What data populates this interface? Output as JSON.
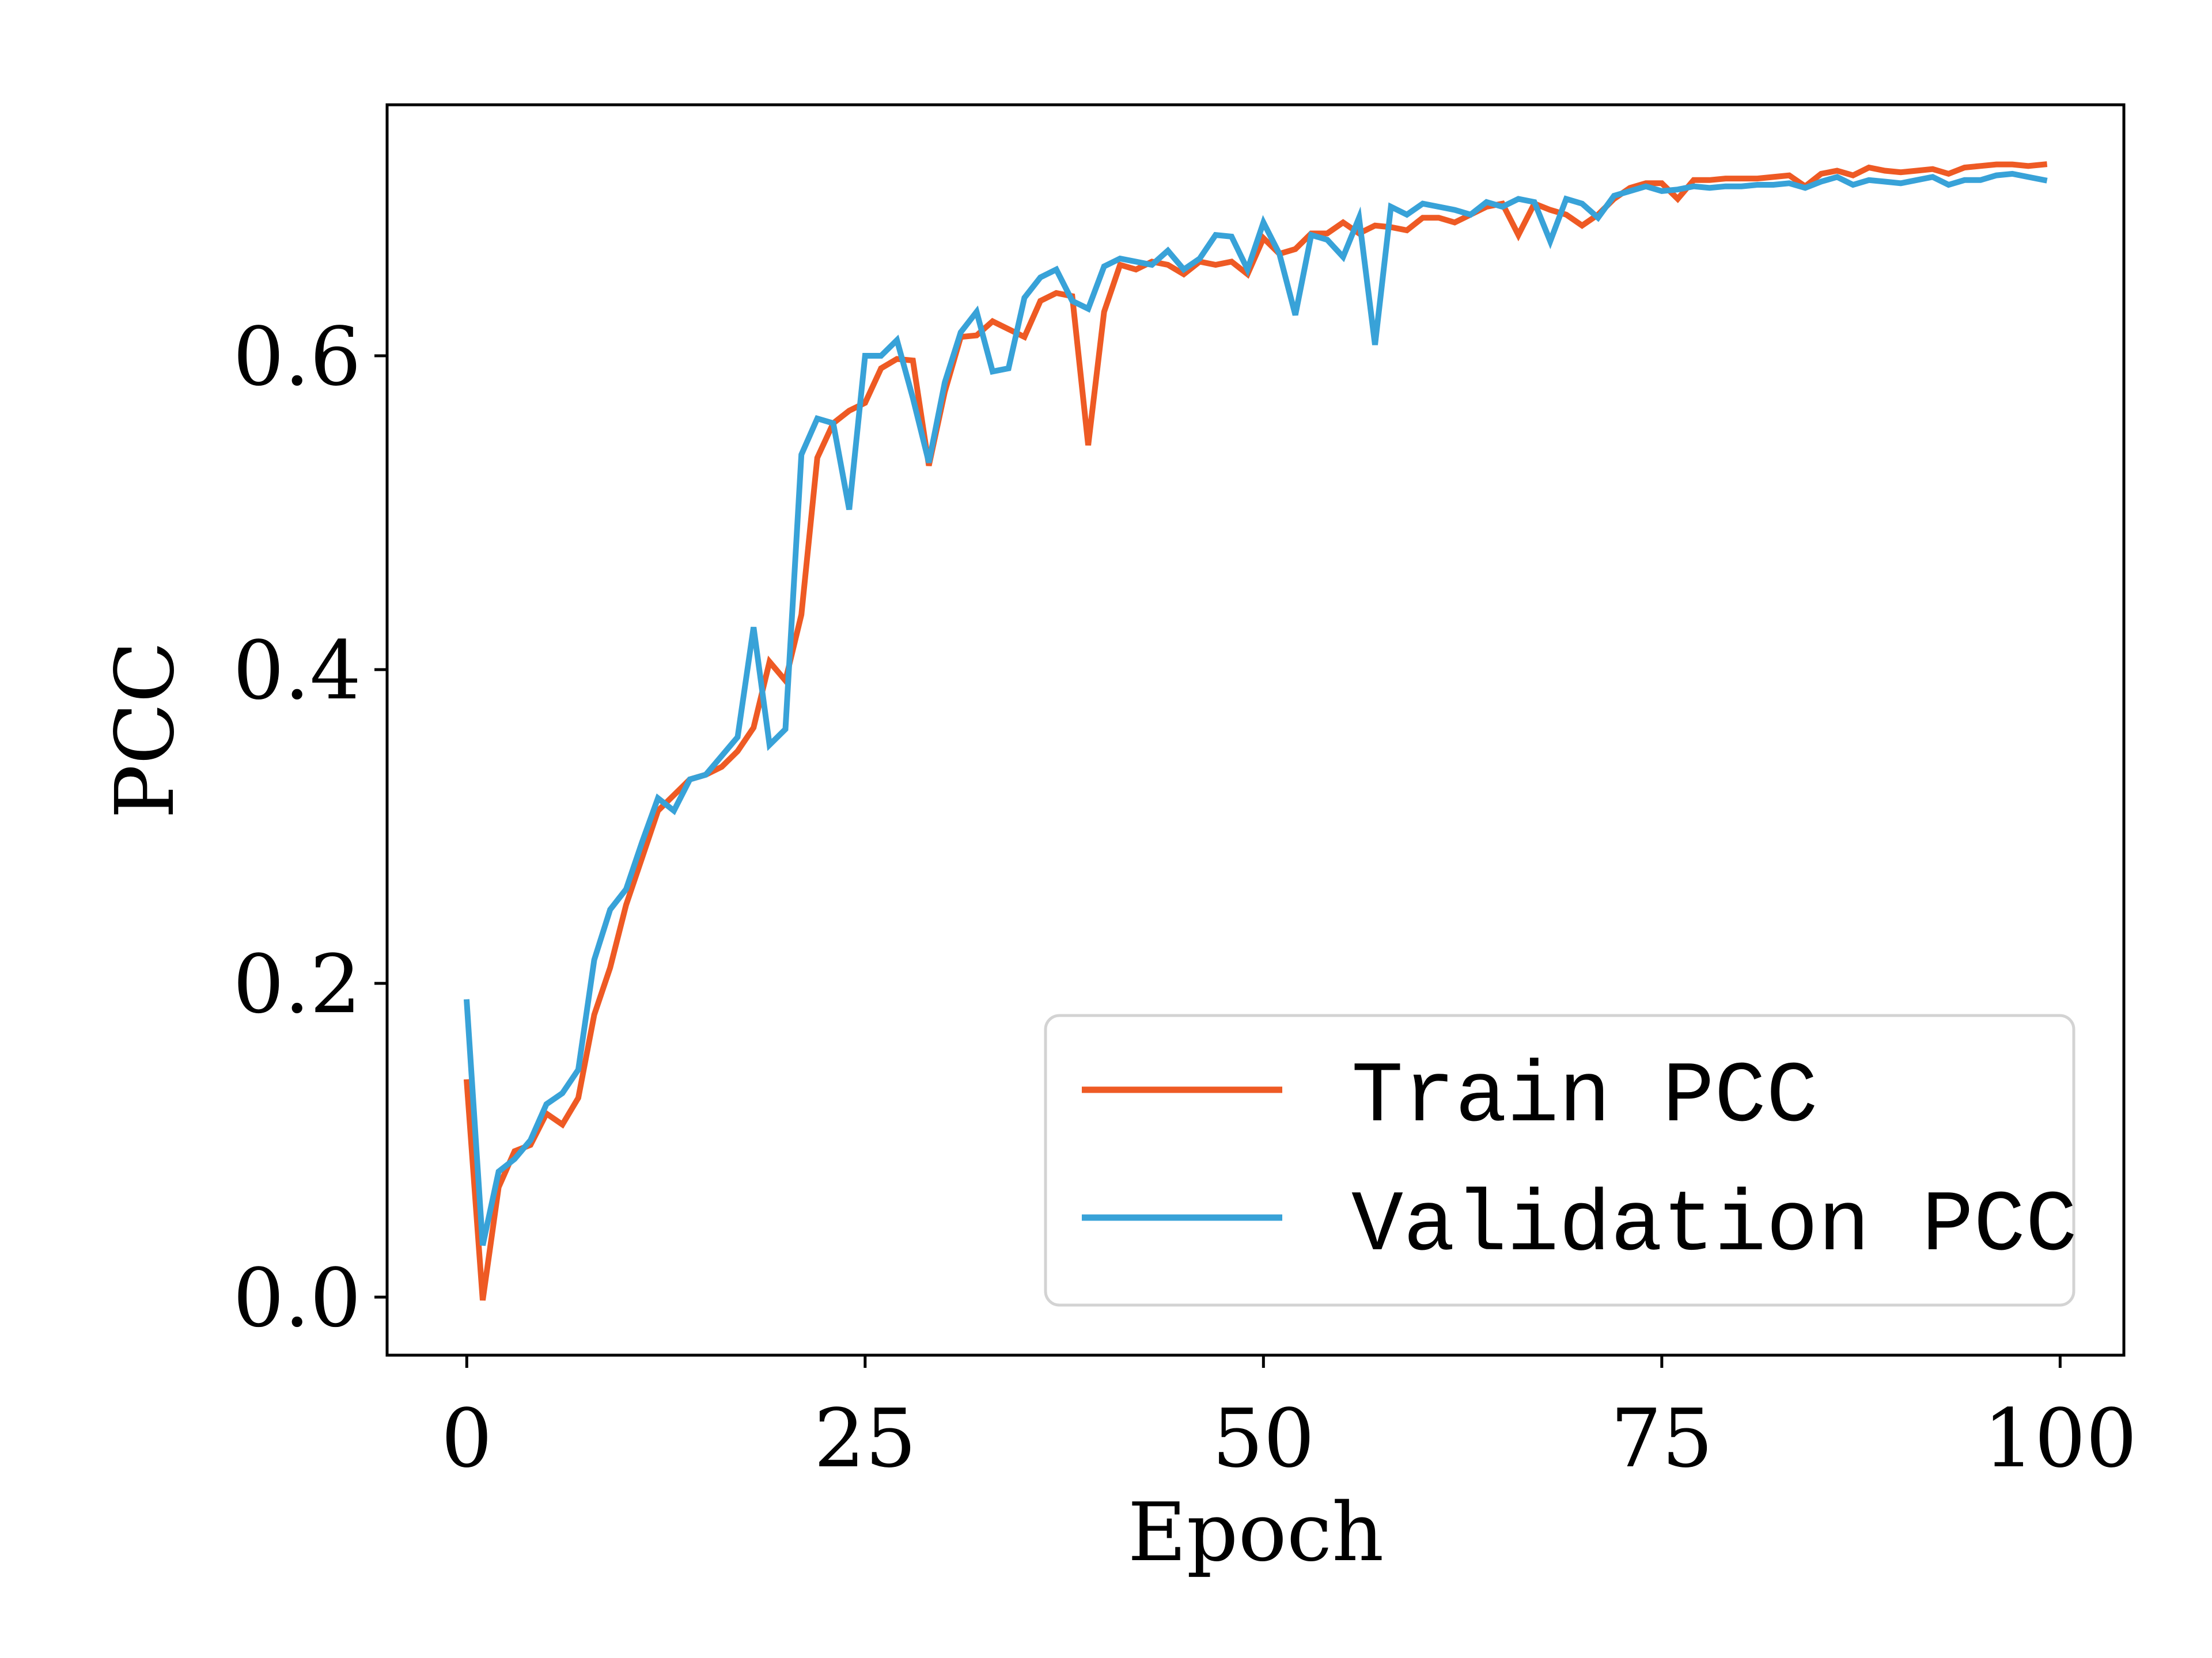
{
  "chart_data": {
    "type": "line",
    "title": "",
    "xlabel": "Epoch",
    "ylabel": "PCC",
    "xlim": [
      -5,
      104
    ],
    "ylim": [
      -0.037,
      0.76
    ],
    "x_ticks": [
      0,
      25,
      50,
      75,
      100
    ],
    "x_tick_labels": [
      "0",
      "25",
      "50",
      "75",
      "100"
    ],
    "y_ticks": [
      0.0,
      0.2,
      0.4,
      0.6
    ],
    "y_tick_labels": [
      "0.0",
      "0.2",
      "0.4",
      "0.6"
    ],
    "grid": false,
    "legend_position": "bottom-right",
    "series": [
      {
        "name": "Train PCC",
        "color": "#ee5a24",
        "x": [
          0,
          1,
          2,
          3,
          4,
          5,
          6,
          7,
          8,
          9,
          10,
          11,
          12,
          13,
          14,
          15,
          16,
          17,
          18,
          19,
          20,
          21,
          22,
          23,
          24,
          25,
          26,
          27,
          28,
          29,
          30,
          31,
          32,
          33,
          34,
          35,
          36,
          37,
          38,
          39,
          40,
          41,
          42,
          43,
          44,
          45,
          46,
          47,
          48,
          49,
          50,
          51,
          52,
          53,
          54,
          55,
          56,
          57,
          58,
          59,
          60,
          61,
          62,
          63,
          64,
          65,
          66,
          67,
          68,
          69,
          70,
          71,
          72,
          73,
          74,
          75,
          76,
          77,
          78,
          79,
          80,
          81,
          82,
          83,
          84,
          85,
          86,
          87,
          88,
          89,
          90,
          91,
          92,
          93,
          94,
          95,
          96,
          97,
          98,
          99
        ],
        "values": [
          0.137,
          -0.002,
          0.07,
          0.093,
          0.097,
          0.117,
          0.11,
          0.127,
          0.18,
          0.21,
          0.25,
          0.28,
          0.31,
          0.32,
          0.33,
          0.333,
          0.338,
          0.348,
          0.363,
          0.405,
          0.393,
          0.435,
          0.535,
          0.557,
          0.565,
          0.57,
          0.592,
          0.598,
          0.597,
          0.53,
          0.577,
          0.612,
          0.613,
          0.622,
          0.617,
          0.612,
          0.635,
          0.64,
          0.638,
          0.543,
          0.628,
          0.658,
          0.655,
          0.66,
          0.658,
          0.652,
          0.66,
          0.658,
          0.66,
          0.652,
          0.675,
          0.665,
          0.668,
          0.678,
          0.678,
          0.685,
          0.678,
          0.683,
          0.682,
          0.68,
          0.688,
          0.688,
          0.685,
          0.69,
          0.695,
          0.697,
          0.677,
          0.697,
          0.693,
          0.69,
          0.683,
          0.69,
          0.7,
          0.707,
          0.71,
          0.71,
          0.7,
          0.712,
          0.712,
          0.713,
          0.713,
          0.713,
          0.714,
          0.715,
          0.708,
          0.716,
          0.718,
          0.715,
          0.72,
          0.718,
          0.717,
          0.718,
          0.719,
          0.716,
          0.72,
          0.721,
          0.722,
          0.722,
          0.721,
          0.722
        ]
      },
      {
        "name": "Validation PCC",
        "color": "#38a2d8",
        "x": [
          0,
          1,
          2,
          3,
          4,
          5,
          6,
          7,
          8,
          9,
          10,
          11,
          12,
          13,
          14,
          15,
          16,
          17,
          18,
          19,
          20,
          21,
          22,
          23,
          24,
          25,
          26,
          27,
          28,
          29,
          30,
          31,
          32,
          33,
          34,
          35,
          36,
          37,
          38,
          39,
          40,
          41,
          42,
          43,
          44,
          45,
          46,
          47,
          48,
          49,
          50,
          51,
          52,
          53,
          54,
          55,
          56,
          57,
          58,
          59,
          60,
          61,
          62,
          63,
          64,
          65,
          66,
          67,
          68,
          69,
          70,
          71,
          72,
          73,
          74,
          75,
          76,
          77,
          78,
          79,
          80,
          81,
          82,
          83,
          84,
          85,
          86,
          87,
          88,
          89,
          90,
          91,
          92,
          93,
          94,
          95,
          96,
          97,
          98,
          99
        ],
        "values": [
          0.188,
          0.033,
          0.08,
          0.088,
          0.1,
          0.123,
          0.13,
          0.145,
          0.215,
          0.247,
          0.26,
          0.29,
          0.318,
          0.31,
          0.33,
          0.333,
          0.345,
          0.357,
          0.427,
          0.352,
          0.362,
          0.537,
          0.56,
          0.557,
          0.502,
          0.6,
          0.6,
          0.61,
          0.573,
          0.532,
          0.583,
          0.615,
          0.628,
          0.59,
          0.592,
          0.637,
          0.65,
          0.655,
          0.635,
          0.63,
          0.657,
          0.662,
          0.66,
          0.658,
          0.667,
          0.655,
          0.662,
          0.677,
          0.676,
          0.655,
          0.685,
          0.665,
          0.626,
          0.677,
          0.674,
          0.663,
          0.688,
          0.607,
          0.695,
          0.69,
          0.697,
          0.695,
          0.693,
          0.69,
          0.698,
          0.695,
          0.7,
          0.698,
          0.673,
          0.7,
          0.697,
          0.688,
          0.702,
          0.705,
          0.708,
          0.705,
          0.706,
          0.708,
          0.707,
          0.708,
          0.708,
          0.709,
          0.709,
          0.71,
          0.707,
          0.711,
          0.714,
          0.709,
          0.712,
          0.711,
          0.71,
          0.712,
          0.714,
          0.709,
          0.712,
          0.712,
          0.715,
          0.716,
          0.714,
          0.712
        ]
      }
    ]
  }
}
